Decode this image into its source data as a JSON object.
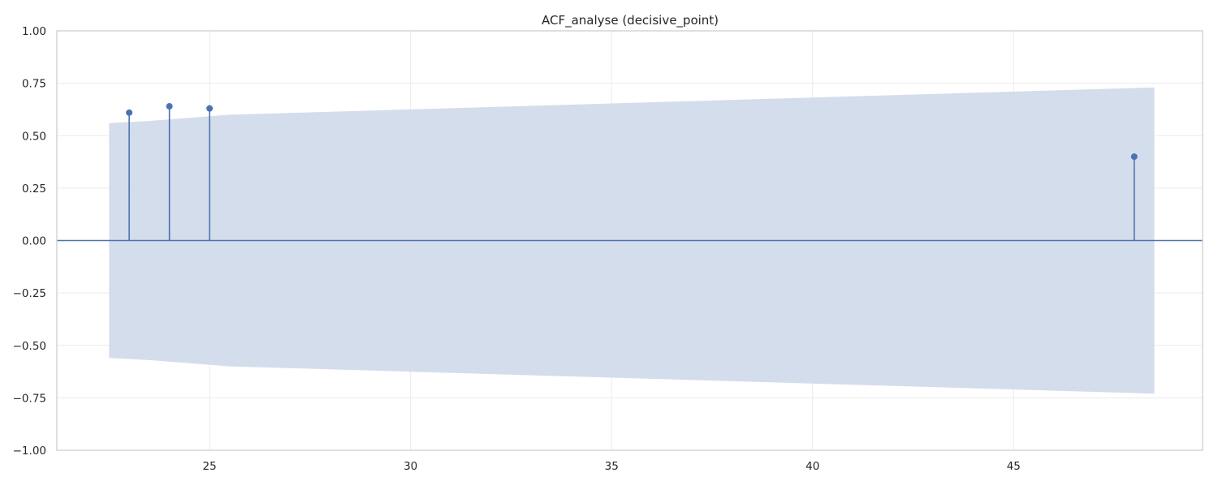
{
  "chart_data": {
    "type": "scatter",
    "subtype": "acf-stem",
    "title": "ACF_analyse (decisive_point)",
    "xlabel": "",
    "ylabel": "",
    "xlim": [
      21.2,
      49.7
    ],
    "ylim": [
      -1.0,
      1.0
    ],
    "x_ticks": [
      25,
      30,
      35,
      40,
      45
    ],
    "y_ticks": [
      1.0,
      0.75,
      0.5,
      0.25,
      0.0,
      -0.25,
      -0.5,
      -0.75,
      -1.0
    ],
    "x_tick_labels": [
      "25",
      "30",
      "35",
      "40",
      "45"
    ],
    "y_tick_labels": [
      "1.00",
      "0.75",
      "0.50",
      "0.25",
      "0.00",
      "−0.25",
      "−0.50",
      "−0.75",
      "−1.00"
    ],
    "grid": true,
    "series": [
      {
        "lags": [
          23,
          24,
          25,
          48
        ],
        "values": [
          0.61,
          0.64,
          0.63,
          0.4
        ]
      }
    ],
    "confidence_band": {
      "x": [
        22.5,
        23.5,
        24.5,
        25.5,
        48.5
      ],
      "upper": [
        0.56,
        0.57,
        0.585,
        0.6,
        0.73
      ]
    },
    "colors": {
      "stem": "#4c72b0",
      "band": "#d2dbeb",
      "grid": "#ebebeb",
      "frame": "#cccccc",
      "zero_line": "#4c72b0"
    }
  }
}
